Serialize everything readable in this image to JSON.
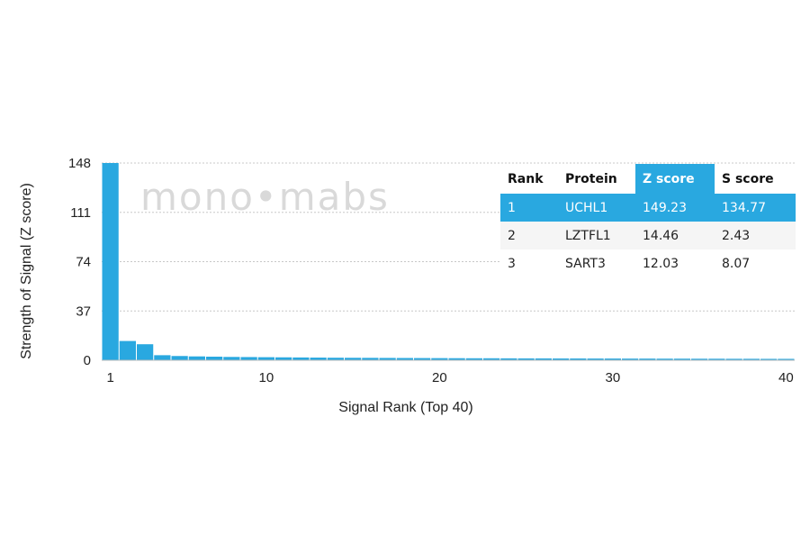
{
  "chart_data": {
    "type": "bar",
    "xlabel": "Signal Rank (Top 40)",
    "ylabel": "Strength of Signal (Z score)",
    "ylim": [
      0,
      148
    ],
    "yticks": [
      0,
      37,
      74,
      111,
      148
    ],
    "xticks": [
      1,
      10,
      20,
      30,
      40
    ],
    "grid": "horizontal dashed",
    "bar_color": "#29a8e0",
    "categories": [
      1,
      2,
      3,
      4,
      5,
      6,
      7,
      8,
      9,
      10,
      11,
      12,
      13,
      14,
      15,
      16,
      17,
      18,
      19,
      20,
      21,
      22,
      23,
      24,
      25,
      26,
      27,
      28,
      29,
      30,
      31,
      32,
      33,
      34,
      35,
      36,
      37,
      38,
      39,
      40
    ],
    "values": [
      149.23,
      14.46,
      12.03,
      3.8,
      3.2,
      2.9,
      2.7,
      2.5,
      2.4,
      2.3,
      2.2,
      2.1,
      2.0,
      1.9,
      1.85,
      1.8,
      1.75,
      1.7,
      1.65,
      1.6,
      1.55,
      1.5,
      1.5,
      1.45,
      1.4,
      1.4,
      1.35,
      1.35,
      1.3,
      1.3,
      1.25,
      1.25,
      1.2,
      1.2,
      1.15,
      1.15,
      1.1,
      1.1,
      1.05,
      1.05
    ]
  },
  "watermark": "mono•mabs",
  "table": {
    "headers": [
      "Rank",
      "Protein",
      "Z score",
      "S score"
    ],
    "rows": [
      [
        "1",
        "UCHL1",
        "149.23",
        "134.77"
      ],
      [
        "2",
        "LZTFL1",
        "14.46",
        "2.43"
      ],
      [
        "3",
        "SART3",
        "12.03",
        "8.07"
      ]
    ]
  }
}
